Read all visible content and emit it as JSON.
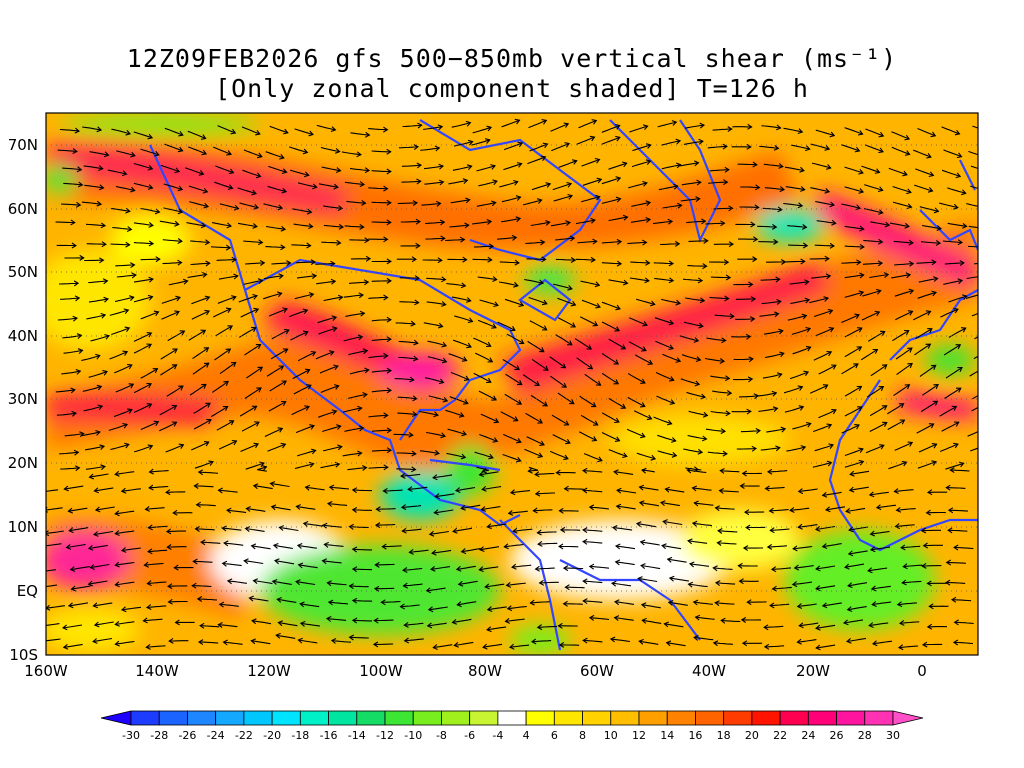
{
  "title_line1": "12Z09FEB2026 gfs 500−850mb vertical shear (ms⁻¹)",
  "title_line2": "[Only zonal component shaded] T=126 h",
  "lat_labels": [
    "70N",
    "60N",
    "50N",
    "40N",
    "30N",
    "20N",
    "10N",
    "EQ",
    "10S"
  ],
  "lon_labels": [
    "160W",
    "140W",
    "120W",
    "100W",
    "80W",
    "60W",
    "40W",
    "20W",
    "0"
  ],
  "colorbar": {
    "tick_labels": [
      "-30",
      "-28",
      "-26",
      "-24",
      "-22",
      "-20",
      "-18",
      "-16",
      "-14",
      "-12",
      "-10",
      "-8",
      "-6",
      "-4",
      "4",
      "6",
      "8",
      "10",
      "12",
      "14",
      "16",
      "18",
      "20",
      "22",
      "24",
      "26",
      "28",
      "30"
    ],
    "colors": [
      "#1e00ff",
      "#1c3cff",
      "#1c64ff",
      "#1e86ff",
      "#14a8ff",
      "#00c8ff",
      "#00e4ff",
      "#00f0c8",
      "#00e6a0",
      "#14dc64",
      "#3ce632",
      "#78ee1e",
      "#a0f01e",
      "#c8f532",
      "#ffffff",
      "#ffff00",
      "#ffe600",
      "#ffd200",
      "#ffbe00",
      "#ffa000",
      "#ff8200",
      "#ff6400",
      "#ff3c00",
      "#ff1400",
      "#ff0050",
      "#ff0078",
      "#ff14a0",
      "#ff32b4",
      "#ff50c8"
    ]
  }
}
